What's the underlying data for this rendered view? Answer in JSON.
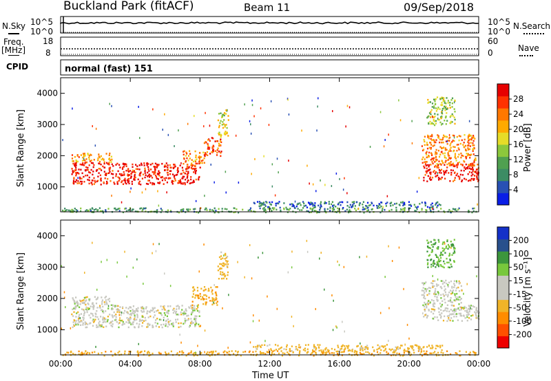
{
  "header": {
    "station": "Buckland Park (fitACF)",
    "beam": "Beam 11",
    "date": "09/Sep/2018"
  },
  "top_panels": {
    "nsky_label": "N.Sky",
    "nsearch_label": "N.Search",
    "noise_ticks_left": [
      "10^5",
      "10^0"
    ],
    "noise_ticks_right": [
      "10^5",
      "10^0"
    ],
    "freq_label_top": "Freq.",
    "freq_label_unit": "[MHz]",
    "freq_ticks": [
      "18",
      "8"
    ],
    "nave_label": "Nave",
    "nave_ticks": [
      "60",
      "0"
    ],
    "cpid_label": "CPID",
    "cpid_text": "normal (fast) 151"
  },
  "colors": {
    "power_scale": [
      "#0a1ee6",
      "#2850b4",
      "#3c8c64",
      "#50a050",
      "#8cc83c",
      "#e6dc28",
      "#ffaa00",
      "#ff7800",
      "#ff3200",
      "#e60000"
    ],
    "velocity_scale": [
      "#ee0000",
      "#ff5000",
      "#ff8c00",
      "#f0b428",
      "#c8c8c0",
      "#c8c8c0",
      "#78c83c",
      "#3c963c",
      "#28508c",
      "#1430c8"
    ]
  },
  "chart_data": [
    {
      "type": "heatmap",
      "panel": "power",
      "ylabel": "Slant Range [km]",
      "ylim": [
        200,
        4500
      ],
      "yticks": [
        "1000",
        "2000",
        "3000",
        "4000"
      ],
      "colorbar_label": "Power [dB]",
      "colorbar_ticks": [
        "4",
        "8",
        "12",
        "16",
        "20",
        "24",
        "28"
      ],
      "colorbar_range": [
        0,
        30
      ],
      "xlim_hours": [
        0,
        24
      ],
      "regions": [
        {
          "t": [
            0.6,
            8.0
          ],
          "r": [
            1100,
            1800
          ],
          "value": 28
        },
        {
          "t": [
            0.6,
            3.0
          ],
          "r": [
            1800,
            2100
          ],
          "value": 20
        },
        {
          "t": [
            7.0,
            8.3
          ],
          "r": [
            1700,
            2200
          ],
          "value": 22
        },
        {
          "t": [
            8.2,
            9.2
          ],
          "r": [
            2000,
            2600
          ],
          "value": 24
        },
        {
          "t": [
            9.0,
            9.6
          ],
          "r": [
            2600,
            3500
          ],
          "value": 16
        },
        {
          "t": [
            20.8,
            24.0
          ],
          "r": [
            1200,
            1750
          ],
          "value": 28
        },
        {
          "t": [
            20.7,
            23.8
          ],
          "r": [
            1700,
            2700
          ],
          "value": 22
        },
        {
          "t": [
            21.0,
            22.6
          ],
          "r": [
            3000,
            3900
          ],
          "value": 14
        },
        {
          "t": [
            0.0,
            24.0
          ],
          "r": [
            200,
            350
          ],
          "value": 10
        },
        {
          "t": [
            11.0,
            22.0
          ],
          "r": [
            350,
            550
          ],
          "value": 6
        }
      ]
    },
    {
      "type": "heatmap",
      "panel": "velocity",
      "ylabel": "Slant Range [km]",
      "xlabel": "Time UT",
      "ylim": [
        200,
        4500
      ],
      "yticks": [
        "1000",
        "2000",
        "3000",
        "4000"
      ],
      "xticks": [
        "00:00",
        "04:00",
        "08:00",
        "12:00",
        "16:00",
        "20:00",
        "00:00"
      ],
      "colorbar_label": "Velocity [m s⁻¹]",
      "colorbar_ticks": [
        "200",
        "100",
        "50",
        "15",
        "-15",
        "-50",
        "-100",
        "-200"
      ],
      "xlim_hours": [
        0,
        24
      ],
      "regions": [
        {
          "t": [
            0.6,
            8.0
          ],
          "r": [
            1100,
            1800
          ],
          "value": 0
        },
        {
          "t": [
            0.6,
            3.0
          ],
          "r": [
            1800,
            2100
          ],
          "value": 0
        },
        {
          "t": [
            7.5,
            9.0
          ],
          "r": [
            1800,
            2400
          ],
          "value": -40
        },
        {
          "t": [
            9.0,
            9.6
          ],
          "r": [
            2600,
            3500
          ],
          "value": -30
        },
        {
          "t": [
            20.8,
            24.0
          ],
          "r": [
            1300,
            1800
          ],
          "value": 0
        },
        {
          "t": [
            20.7,
            23.0
          ],
          "r": [
            1800,
            2600
          ],
          "value": 0
        },
        {
          "t": [
            21.0,
            22.6
          ],
          "r": [
            3000,
            3900
          ],
          "value": 50
        },
        {
          "t": [
            0.0,
            24.0
          ],
          "r": [
            200,
            350
          ],
          "value": -40
        },
        {
          "t": [
            11.0,
            22.0
          ],
          "r": [
            350,
            550
          ],
          "value": -30
        }
      ]
    }
  ]
}
